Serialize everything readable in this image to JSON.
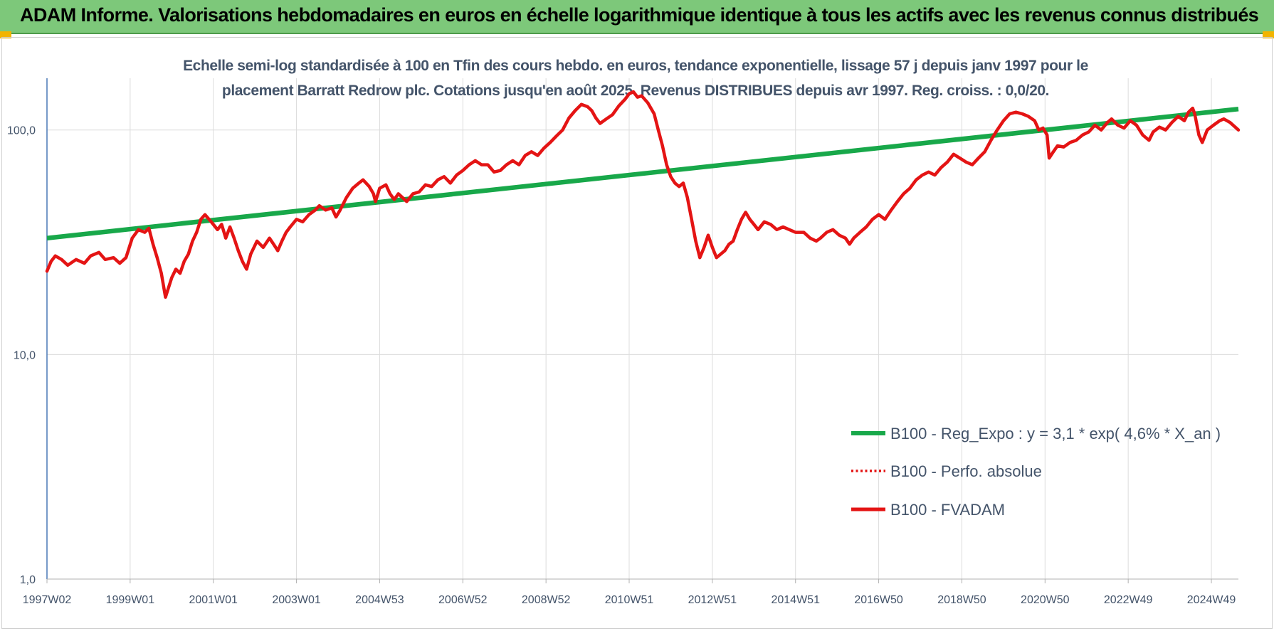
{
  "header": {
    "title": "ADAM Informe. Valorisations hebdomadaires en euros en échelle logarithmique identique à tous les actifs avec les revenus connus distribués"
  },
  "colors": {
    "banner": "#7dc87a",
    "corner_accent": "#f2b400",
    "series_trend": "#18a84a",
    "series_fvadam": "#e41414",
    "series_perfo": "#e41414",
    "text": "#44546a",
    "grid": "#dcdcdc"
  },
  "chart_data": {
    "type": "line",
    "title_lines": [
      "Echelle semi-log standardisée à 100 en Tfin des cours hebdo. en euros, tendance exponentielle, lissage 57 j depuis janv 1997 pour le",
      "placement Barratt Redrow plc. Cotations jusqu'en août 2025. Revenus DISTRIBUES depuis avr 1997. Reg. croiss. : 0,0/20."
    ],
    "y_scale": "log",
    "ylim": [
      1,
      170
    ],
    "y_ticks": [
      {
        "value": 1,
        "label": "1,0"
      },
      {
        "value": 10,
        "label": "10,0"
      },
      {
        "value": 100,
        "label": "100,0"
      }
    ],
    "xlim": [
      1997.0,
      2025.65
    ],
    "x_ticks": [
      {
        "pos": 1997.0,
        "label": "1997W02"
      },
      {
        "pos": 1999.0,
        "label": "1999W01"
      },
      {
        "pos": 2001.0,
        "label": "2001W01"
      },
      {
        "pos": 2003.0,
        "label": "2003W01"
      },
      {
        "pos": 2005.0,
        "label": "2004W53"
      },
      {
        "pos": 2007.0,
        "label": "2006W52"
      },
      {
        "pos": 2009.0,
        "label": "2008W52"
      },
      {
        "pos": 2011.0,
        "label": "2010W51"
      },
      {
        "pos": 2013.0,
        "label": "2012W51"
      },
      {
        "pos": 2015.0,
        "label": "2014W51"
      },
      {
        "pos": 2017.0,
        "label": "2016W50"
      },
      {
        "pos": 2019.0,
        "label": "2018W50"
      },
      {
        "pos": 2021.0,
        "label": "2020W50"
      },
      {
        "pos": 2023.0,
        "label": "2022W49"
      },
      {
        "pos": 2025.0,
        "label": "2024W49"
      }
    ],
    "grid": "vertical",
    "legend_position": "bottom-right",
    "series": [
      {
        "name": "B100 - Reg_Expo : y = 3,1 * exp( 4,6% *  X_an )",
        "style": "solid-thick",
        "color": "#18a84a",
        "points": [
          [
            1997.0,
            33
          ],
          [
            2025.65,
            124
          ]
        ]
      },
      {
        "name": "B100 - Perfo. absolue",
        "style": "dotted",
        "color": "#e41414",
        "points": []
      },
      {
        "name": "B100 - FVADAM",
        "style": "solid",
        "color": "#e41414",
        "points": [
          [
            1997.0,
            23.5
          ],
          [
            1997.1,
            26
          ],
          [
            1997.2,
            27.5
          ],
          [
            1997.35,
            26.5
          ],
          [
            1997.5,
            25
          ],
          [
            1997.7,
            26.5
          ],
          [
            1997.9,
            25.5
          ],
          [
            1998.05,
            27.5
          ],
          [
            1998.25,
            28.5
          ],
          [
            1998.4,
            26.5
          ],
          [
            1998.6,
            27
          ],
          [
            1998.75,
            25.5
          ],
          [
            1998.9,
            27
          ],
          [
            1999.05,
            33
          ],
          [
            1999.2,
            36
          ],
          [
            1999.35,
            35
          ],
          [
            1999.45,
            36.5
          ],
          [
            1999.55,
            31
          ],
          [
            1999.65,
            27
          ],
          [
            1999.75,
            23
          ],
          [
            1999.85,
            18
          ],
          [
            2000.0,
            22
          ],
          [
            2000.1,
            24
          ],
          [
            2000.2,
            23
          ],
          [
            2000.3,
            26
          ],
          [
            2000.4,
            28
          ],
          [
            2000.5,
            32
          ],
          [
            2000.6,
            35
          ],
          [
            2000.7,
            40
          ],
          [
            2000.8,
            42
          ],
          [
            2000.95,
            39
          ],
          [
            2001.1,
            36
          ],
          [
            2001.2,
            38
          ],
          [
            2001.3,
            33
          ],
          [
            2001.4,
            37
          ],
          [
            2001.5,
            33
          ],
          [
            2001.6,
            29
          ],
          [
            2001.7,
            26
          ],
          [
            2001.8,
            24
          ],
          [
            2001.9,
            28
          ],
          [
            2002.05,
            32
          ],
          [
            2002.2,
            30
          ],
          [
            2002.35,
            33
          ],
          [
            2002.45,
            31
          ],
          [
            2002.55,
            29
          ],
          [
            2002.65,
            32
          ],
          [
            2002.75,
            35
          ],
          [
            2002.85,
            37
          ],
          [
            2003.0,
            40
          ],
          [
            2003.15,
            39
          ],
          [
            2003.3,
            42
          ],
          [
            2003.45,
            44
          ],
          [
            2003.55,
            46
          ],
          [
            2003.7,
            44
          ],
          [
            2003.85,
            45
          ],
          [
            2003.95,
            41
          ],
          [
            2004.05,
            44
          ],
          [
            2004.2,
            50
          ],
          [
            2004.35,
            55
          ],
          [
            2004.5,
            58
          ],
          [
            2004.6,
            60
          ],
          [
            2004.75,
            56
          ],
          [
            2004.85,
            52
          ],
          [
            2004.9,
            48
          ],
          [
            2005.0,
            55
          ],
          [
            2005.15,
            57
          ],
          [
            2005.25,
            52
          ],
          [
            2005.35,
            49
          ],
          [
            2005.45,
            52
          ],
          [
            2005.55,
            50
          ],
          [
            2005.65,
            48
          ],
          [
            2005.8,
            52
          ],
          [
            2005.95,
            53
          ],
          [
            2006.1,
            57
          ],
          [
            2006.25,
            56
          ],
          [
            2006.4,
            60
          ],
          [
            2006.55,
            62
          ],
          [
            2006.7,
            58
          ],
          [
            2006.85,
            63
          ],
          [
            2007.0,
            66
          ],
          [
            2007.15,
            70
          ],
          [
            2007.3,
            73
          ],
          [
            2007.45,
            70
          ],
          [
            2007.6,
            70
          ],
          [
            2007.75,
            65
          ],
          [
            2007.9,
            66
          ],
          [
            2008.05,
            70
          ],
          [
            2008.2,
            73
          ],
          [
            2008.35,
            70
          ],
          [
            2008.5,
            77
          ],
          [
            2008.65,
            80
          ],
          [
            2008.8,
            77
          ],
          [
            2008.95,
            83
          ],
          [
            2009.1,
            88
          ],
          [
            2009.25,
            94
          ],
          [
            2009.4,
            100
          ],
          [
            2009.55,
            113
          ],
          [
            2009.7,
            122
          ],
          [
            2009.85,
            130
          ],
          [
            2010.0,
            127
          ],
          [
            2010.1,
            122
          ],
          [
            2010.2,
            113
          ],
          [
            2010.3,
            107
          ],
          [
            2010.45,
            112
          ],
          [
            2010.6,
            117
          ],
          [
            2010.75,
            128
          ],
          [
            2010.9,
            137
          ],
          [
            2011.0,
            145
          ],
          [
            2011.1,
            148
          ],
          [
            2011.2,
            140
          ],
          [
            2011.3,
            142
          ],
          [
            2011.45,
            132
          ],
          [
            2011.6,
            118
          ],
          [
            2011.7,
            100
          ],
          [
            2011.8,
            85
          ],
          [
            2011.9,
            70
          ],
          [
            2012.0,
            62
          ],
          [
            2012.1,
            58
          ],
          [
            2012.2,
            56
          ],
          [
            2012.3,
            58
          ],
          [
            2012.4,
            50
          ],
          [
            2012.5,
            40
          ],
          [
            2012.6,
            32
          ],
          [
            2012.7,
            27
          ],
          [
            2012.8,
            30
          ],
          [
            2012.9,
            34
          ],
          [
            2013.0,
            30
          ],
          [
            2013.1,
            27
          ],
          [
            2013.2,
            28
          ],
          [
            2013.3,
            29
          ],
          [
            2013.4,
            31
          ],
          [
            2013.5,
            32
          ],
          [
            2013.6,
            36
          ],
          [
            2013.7,
            40
          ],
          [
            2013.8,
            43
          ],
          [
            2013.9,
            40
          ],
          [
            2014.0,
            38
          ],
          [
            2014.1,
            36
          ],
          [
            2014.25,
            39
          ],
          [
            2014.4,
            38
          ],
          [
            2014.55,
            36
          ],
          [
            2014.7,
            37
          ],
          [
            2014.85,
            36
          ],
          [
            2015.0,
            35
          ],
          [
            2015.2,
            35
          ],
          [
            2015.35,
            33
          ],
          [
            2015.5,
            32
          ],
          [
            2015.6,
            33
          ],
          [
            2015.75,
            35
          ],
          [
            2015.9,
            36
          ],
          [
            2016.05,
            34
          ],
          [
            2016.2,
            33
          ],
          [
            2016.3,
            31
          ],
          [
            2016.4,
            33
          ],
          [
            2016.55,
            35
          ],
          [
            2016.7,
            37
          ],
          [
            2016.85,
            40
          ],
          [
            2017.0,
            42
          ],
          [
            2017.15,
            40
          ],
          [
            2017.3,
            44
          ],
          [
            2017.45,
            48
          ],
          [
            2017.6,
            52
          ],
          [
            2017.75,
            55
          ],
          [
            2017.9,
            60
          ],
          [
            2018.05,
            63
          ],
          [
            2018.2,
            65
          ],
          [
            2018.35,
            63
          ],
          [
            2018.5,
            68
          ],
          [
            2018.65,
            72
          ],
          [
            2018.8,
            78
          ],
          [
            2018.95,
            75
          ],
          [
            2019.1,
            72
          ],
          [
            2019.25,
            70
          ],
          [
            2019.4,
            75
          ],
          [
            2019.55,
            80
          ],
          [
            2019.7,
            90
          ],
          [
            2019.85,
            100
          ],
          [
            2020.0,
            110
          ],
          [
            2020.15,
            118
          ],
          [
            2020.3,
            120
          ],
          [
            2020.45,
            118
          ],
          [
            2020.6,
            115
          ],
          [
            2020.75,
            110
          ],
          [
            2020.85,
            100
          ],
          [
            2020.95,
            102
          ],
          [
            2021.05,
            95
          ],
          [
            2021.1,
            75
          ],
          [
            2021.2,
            80
          ],
          [
            2021.3,
            85
          ],
          [
            2021.45,
            84
          ],
          [
            2021.6,
            88
          ],
          [
            2021.75,
            90
          ],
          [
            2021.9,
            95
          ],
          [
            2022.05,
            98
          ],
          [
            2022.2,
            105
          ],
          [
            2022.35,
            100
          ],
          [
            2022.5,
            108
          ],
          [
            2022.6,
            112
          ],
          [
            2022.75,
            105
          ],
          [
            2022.9,
            102
          ],
          [
            2023.05,
            110
          ],
          [
            2023.2,
            105
          ],
          [
            2023.35,
            95
          ],
          [
            2023.5,
            90
          ],
          [
            2023.6,
            98
          ],
          [
            2023.75,
            103
          ],
          [
            2023.9,
            100
          ],
          [
            2024.05,
            108
          ],
          [
            2024.2,
            115
          ],
          [
            2024.35,
            110
          ],
          [
            2024.45,
            120
          ],
          [
            2024.55,
            125
          ],
          [
            2024.6,
            118
          ],
          [
            2024.7,
            95
          ],
          [
            2024.78,
            88
          ],
          [
            2024.9,
            100
          ],
          [
            2025.05,
            105
          ],
          [
            2025.2,
            110
          ],
          [
            2025.3,
            112
          ],
          [
            2025.45,
            108
          ],
          [
            2025.65,
            100
          ]
        ]
      }
    ]
  }
}
